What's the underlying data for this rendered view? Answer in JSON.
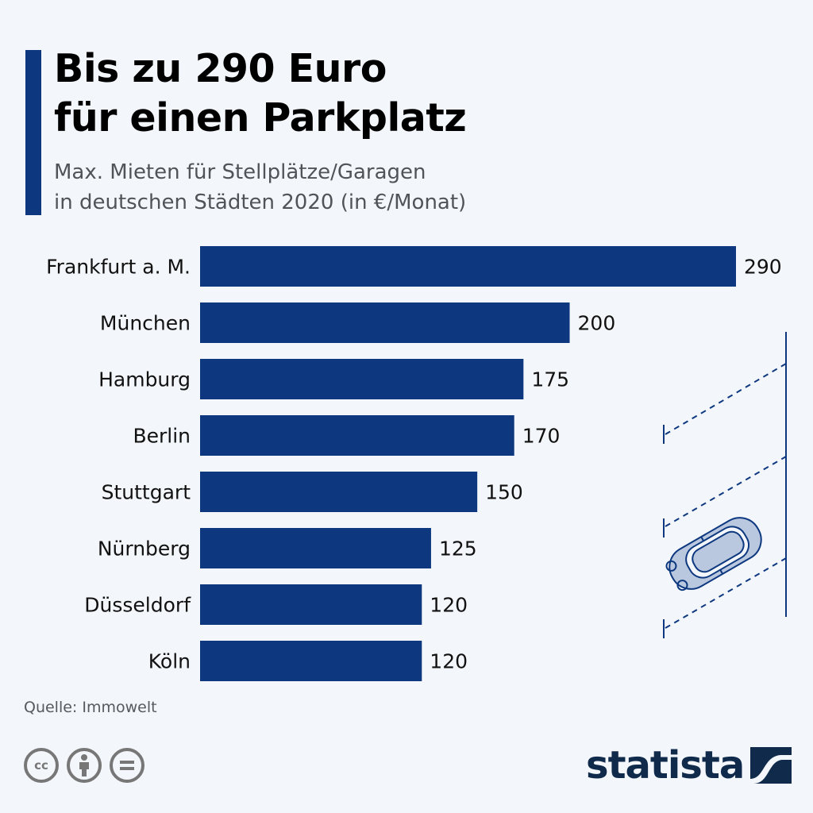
{
  "header": {
    "title_lines": [
      "Bis zu 290 Euro",
      "für einen Parkplatz"
    ],
    "subtitle_lines": [
      "Max. Mieten für Stellplätze/Garagen",
      "in deutschen Städten 2020 (in €/Monat)"
    ]
  },
  "colors": {
    "bar": "#0d3880",
    "accent": "#0d3880",
    "background": "#f3f6fa",
    "illustration_fill": "#b9c8de",
    "logo": "#0f2a4a"
  },
  "chart_data": {
    "type": "bar",
    "orientation": "horizontal",
    "title": "Bis zu 290 Euro für einen Parkplatz",
    "subtitle": "Max. Mieten für Stellplätze/Garagen in deutschen Städten 2020 (in €/Monat)",
    "categories": [
      "Frankfurt a. M.",
      "München",
      "Hamburg",
      "Berlin",
      "Stuttgart",
      "Nürnberg",
      "Düsseldorf",
      "Köln"
    ],
    "values": [
      290,
      200,
      175,
      170,
      150,
      125,
      120,
      120
    ],
    "value_labels": [
      "290",
      "200",
      "175",
      "170",
      "150",
      "125",
      "120",
      "120"
    ],
    "xlabel": "",
    "ylabel": "",
    "xlim": [
      0,
      290
    ],
    "grid": false,
    "legend": "none",
    "data_labels": "outside-end"
  },
  "footer": {
    "source": "Quelle: Immowelt",
    "license_icons": [
      "cc-icon",
      "attribution-icon",
      "no-derivatives-icon"
    ],
    "cc_text": "cc",
    "logo_text": "statista"
  }
}
